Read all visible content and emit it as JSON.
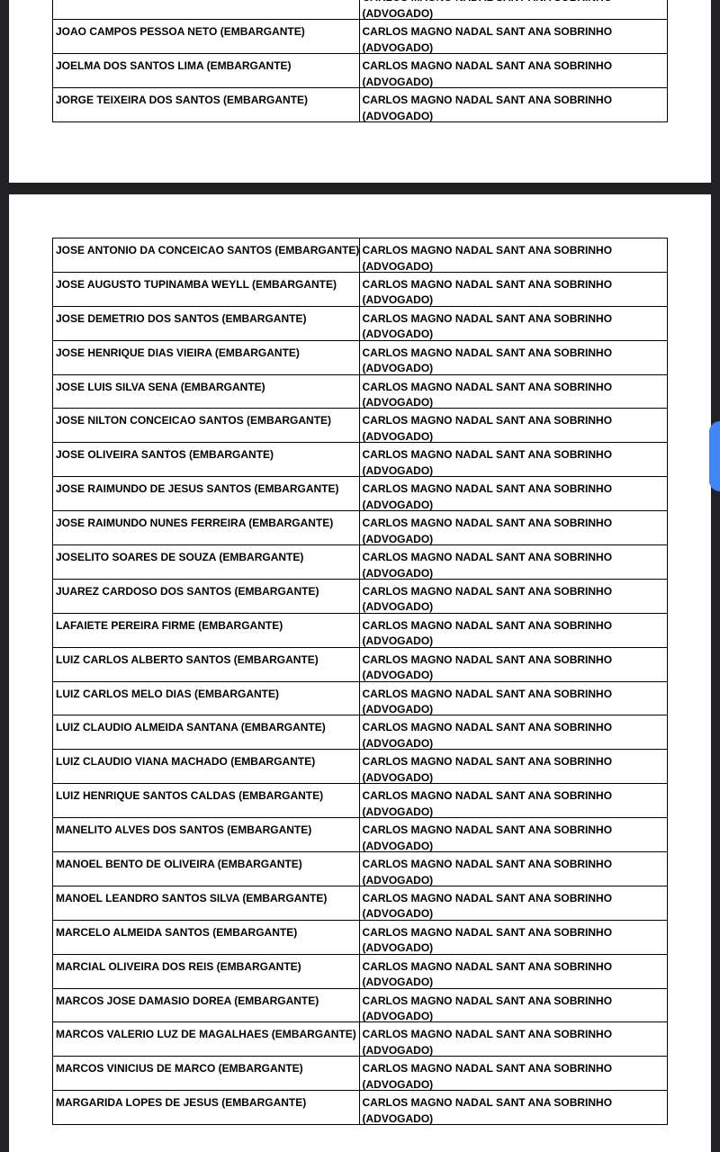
{
  "pages": [
    {
      "rows": [
        {
          "lawyer": [
            "CARLOS MAGNO NADAL SANT ANA SOBRINHO",
            "(ADVOGADO)"
          ]
        },
        {
          "party": "JOAO CAMPOS PESSOA NETO (EMBARGANTE)",
          "lawyer": [
            "CARLOS MAGNO NADAL SANT ANA SOBRINHO",
            "(ADVOGADO)"
          ]
        },
        {
          "party": "JOELMA DOS SANTOS LIMA (EMBARGANTE)",
          "lawyer": [
            "CARLOS MAGNO NADAL SANT ANA SOBRINHO",
            "(ADVOGADO)"
          ]
        },
        {
          "party": "JORGE TEIXEIRA DOS SANTOS (EMBARGANTE)",
          "lawyer": [
            "CARLOS MAGNO NADAL SANT ANA SOBRINHO",
            "(ADVOGADO)"
          ]
        }
      ]
    },
    {
      "rows": [
        {
          "party": "JOSE ANTONIO DA CONCEICAO SANTOS (EMBARGANTE)",
          "lawyer": [
            "CARLOS MAGNO NADAL SANT ANA SOBRINHO",
            "(ADVOGADO)"
          ]
        },
        {
          "party": "JOSE AUGUSTO TUPINAMBA WEYLL (EMBARGANTE)",
          "lawyer": [
            "CARLOS MAGNO NADAL SANT ANA SOBRINHO",
            "(ADVOGADO)"
          ]
        },
        {
          "party": "JOSE DEMETRIO DOS SANTOS (EMBARGANTE)",
          "lawyer": [
            "CARLOS MAGNO NADAL SANT ANA SOBRINHO",
            "(ADVOGADO)"
          ]
        },
        {
          "party": "JOSE HENRIQUE DIAS VIEIRA (EMBARGANTE)",
          "lawyer": [
            "CARLOS MAGNO NADAL SANT ANA SOBRINHO",
            "(ADVOGADO)"
          ]
        },
        {
          "party": "JOSE LUIS SILVA SENA (EMBARGANTE)",
          "lawyer": [
            "CARLOS MAGNO NADAL SANT ANA SOBRINHO",
            "(ADVOGADO)"
          ]
        },
        {
          "party": "JOSE NILTON CONCEICAO SANTOS (EMBARGANTE)",
          "lawyer": [
            "CARLOS MAGNO NADAL SANT ANA SOBRINHO",
            "(ADVOGADO)"
          ]
        },
        {
          "party": "JOSE OLIVEIRA SANTOS (EMBARGANTE)",
          "lawyer": [
            "CARLOS MAGNO NADAL SANT ANA SOBRINHO",
            "(ADVOGADO)"
          ]
        },
        {
          "party": "JOSE RAIMUNDO DE JESUS SANTOS (EMBARGANTE)",
          "lawyer": [
            "CARLOS MAGNO NADAL SANT ANA SOBRINHO",
            "(ADVOGADO)"
          ]
        },
        {
          "party": "JOSE RAIMUNDO NUNES FERREIRA (EMBARGANTE)",
          "lawyer": [
            "CARLOS MAGNO NADAL SANT ANA SOBRINHO",
            "(ADVOGADO)"
          ]
        },
        {
          "party": "JOSELITO SOARES DE SOUZA (EMBARGANTE)",
          "lawyer": [
            "CARLOS MAGNO NADAL SANT ANA SOBRINHO",
            "(ADVOGADO)"
          ]
        },
        {
          "party": "JUAREZ CARDOSO DOS SANTOS (EMBARGANTE)",
          "lawyer": [
            "CARLOS MAGNO NADAL SANT ANA SOBRINHO",
            "(ADVOGADO)"
          ]
        },
        {
          "party": "LAFAIETE PEREIRA FIRME (EMBARGANTE)",
          "lawyer": [
            "CARLOS MAGNO NADAL SANT ANA SOBRINHO",
            "(ADVOGADO)"
          ]
        },
        {
          "party": "LUIZ CARLOS ALBERTO SANTOS (EMBARGANTE)",
          "lawyer": [
            "CARLOS MAGNO NADAL SANT ANA SOBRINHO",
            "(ADVOGADO)"
          ]
        },
        {
          "party": "LUIZ CARLOS MELO DIAS (EMBARGANTE)",
          "lawyer": [
            "CARLOS MAGNO NADAL SANT ANA SOBRINHO",
            "(ADVOGADO)"
          ]
        },
        {
          "party": "LUIZ CLAUDIO ALMEIDA SANTANA (EMBARGANTE)",
          "lawyer": [
            "CARLOS MAGNO NADAL SANT ANA SOBRINHO",
            "(ADVOGADO)"
          ]
        },
        {
          "party": "LUIZ CLAUDIO VIANA MACHADO (EMBARGANTE)",
          "lawyer": [
            "CARLOS MAGNO NADAL SANT ANA SOBRINHO",
            "(ADVOGADO)"
          ]
        },
        {
          "party": "LUIZ HENRIQUE SANTOS CALDAS (EMBARGANTE)",
          "lawyer": [
            "CARLOS MAGNO NADAL SANT ANA SOBRINHO",
            "(ADVOGADO)"
          ]
        },
        {
          "party": "MANELITO ALVES DOS SANTOS (EMBARGANTE)",
          "lawyer": [
            "CARLOS MAGNO NADAL SANT ANA SOBRINHO",
            "(ADVOGADO)"
          ]
        },
        {
          "party": "MANOEL BENTO DE OLIVEIRA (EMBARGANTE)",
          "lawyer": [
            "CARLOS MAGNO NADAL SANT ANA SOBRINHO",
            "(ADVOGADO)"
          ]
        },
        {
          "party": "MANOEL LEANDRO SANTOS SILVA (EMBARGANTE)",
          "lawyer": [
            "CARLOS MAGNO NADAL SANT ANA SOBRINHO",
            "(ADVOGADO)"
          ]
        },
        {
          "party": "MARCELO ALMEIDA SANTOS (EMBARGANTE)",
          "lawyer": [
            "CARLOS MAGNO NADAL SANT ANA SOBRINHO",
            "(ADVOGADO)"
          ]
        },
        {
          "party": "MARCIAL OLIVEIRA DOS REIS (EMBARGANTE)",
          "lawyer": [
            "CARLOS MAGNO NADAL SANT ANA SOBRINHO",
            "(ADVOGADO)"
          ]
        },
        {
          "party": "MARCOS JOSE DAMASIO DOREA (EMBARGANTE)",
          "lawyer": [
            "CARLOS MAGNO NADAL SANT ANA SOBRINHO",
            "(ADVOGADO)"
          ]
        },
        {
          "party": "MARCOS VALERIO LUZ DE MAGALHAES (EMBARGANTE)",
          "lawyer": [
            "CARLOS MAGNO NADAL SANT ANA SOBRINHO",
            "(ADVOGADO)"
          ]
        },
        {
          "party": "MARCOS VINICIUS DE MARCO (EMBARGANTE)",
          "lawyer": [
            "CARLOS MAGNO NADAL SANT ANA SOBRINHO",
            "(ADVOGADO)"
          ]
        },
        {
          "party": "MARGARIDA LOPES DE JESUS (EMBARGANTE)",
          "lawyer": [
            "CARLOS MAGNO NADAL SANT ANA SOBRINHO",
            "(ADVOGADO)"
          ]
        }
      ]
    }
  ]
}
